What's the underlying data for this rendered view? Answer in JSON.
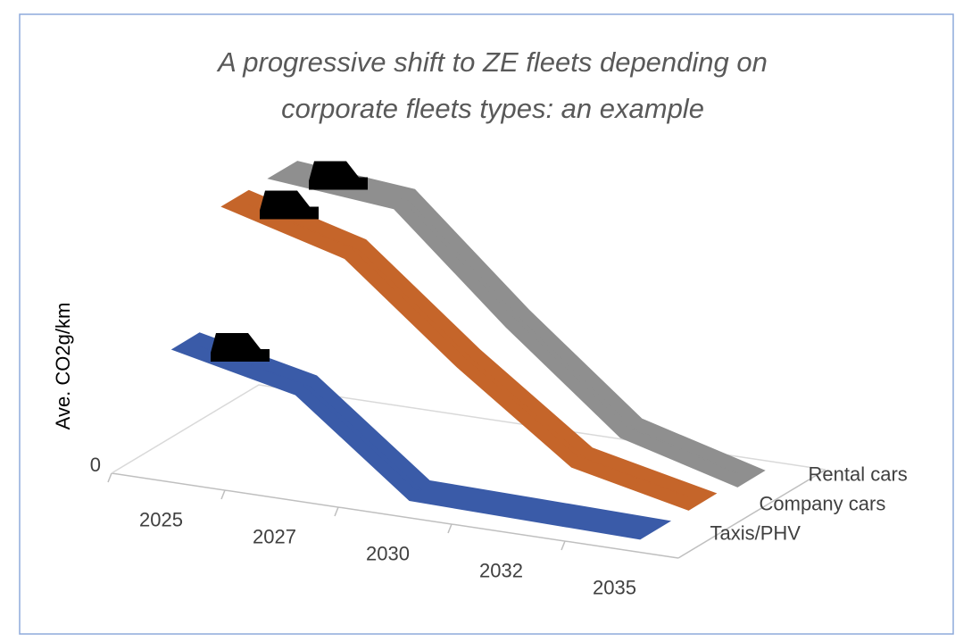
{
  "chart_data": {
    "type": "3d-line",
    "title": [
      "A progressive shift to ZE fleets depending on",
      "corporate fleets types: an example"
    ],
    "y_label": "Ave. CO2g/km",
    "categories": [
      "2025",
      "2027",
      "2030",
      "2032",
      "2035"
    ],
    "series": [
      {
        "name": "Taxis/PHV",
        "color": "#3a5ba8",
        "values": [
          60,
          48,
          5,
          4,
          3
        ]
      },
      {
        "name": "Company cars",
        "color": "#c5652a",
        "values": [
          115,
          100,
          55,
          15,
          3
        ]
      },
      {
        "name": "Rental cars",
        "color": "#8f8f8f",
        "values": [
          115,
          110,
          60,
          15,
          0
        ]
      }
    ],
    "ylim": [
      0,
      120
    ],
    "yticks": [
      0
    ]
  }
}
